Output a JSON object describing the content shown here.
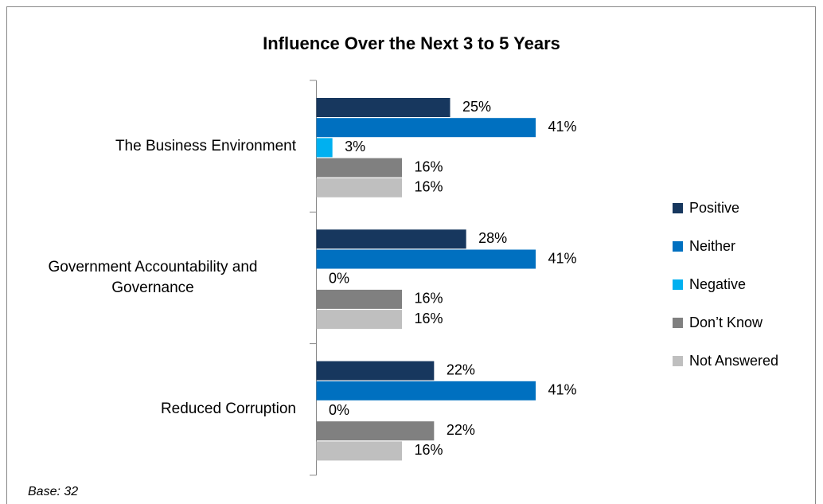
{
  "chart_data": {
    "type": "bar",
    "orientation": "horizontal",
    "title": "Influence Over the Next 3 to 5 Years",
    "categories": [
      "The Business Environment",
      "Government Accountability and Governance",
      "Reduced Corruption"
    ],
    "series": [
      {
        "name": "Positive",
        "color": "#17375e",
        "values": [
          25,
          28,
          22
        ],
        "value_labels": [
          "25%",
          "28%",
          "22%"
        ]
      },
      {
        "name": "Neither",
        "color": "#0070c0",
        "values": [
          41,
          41,
          41
        ],
        "value_labels": [
          "41%",
          "41%",
          "41%"
        ]
      },
      {
        "name": "Negative",
        "color": "#00b0f0",
        "values": [
          3,
          0,
          0
        ],
        "value_labels": [
          "3%",
          "0%",
          "0%"
        ]
      },
      {
        "name": "Don’t Know",
        "color": "#808080",
        "values": [
          16,
          16,
          22
        ],
        "value_labels": [
          "16%",
          "16%",
          "22%"
        ]
      },
      {
        "name": "Not Answered",
        "color": "#bfbfbf",
        "values": [
          16,
          16,
          16
        ],
        "value_labels": [
          "16%",
          "16%",
          "16%"
        ]
      }
    ],
    "legend": "right",
    "footnote": "Base: 32"
  }
}
